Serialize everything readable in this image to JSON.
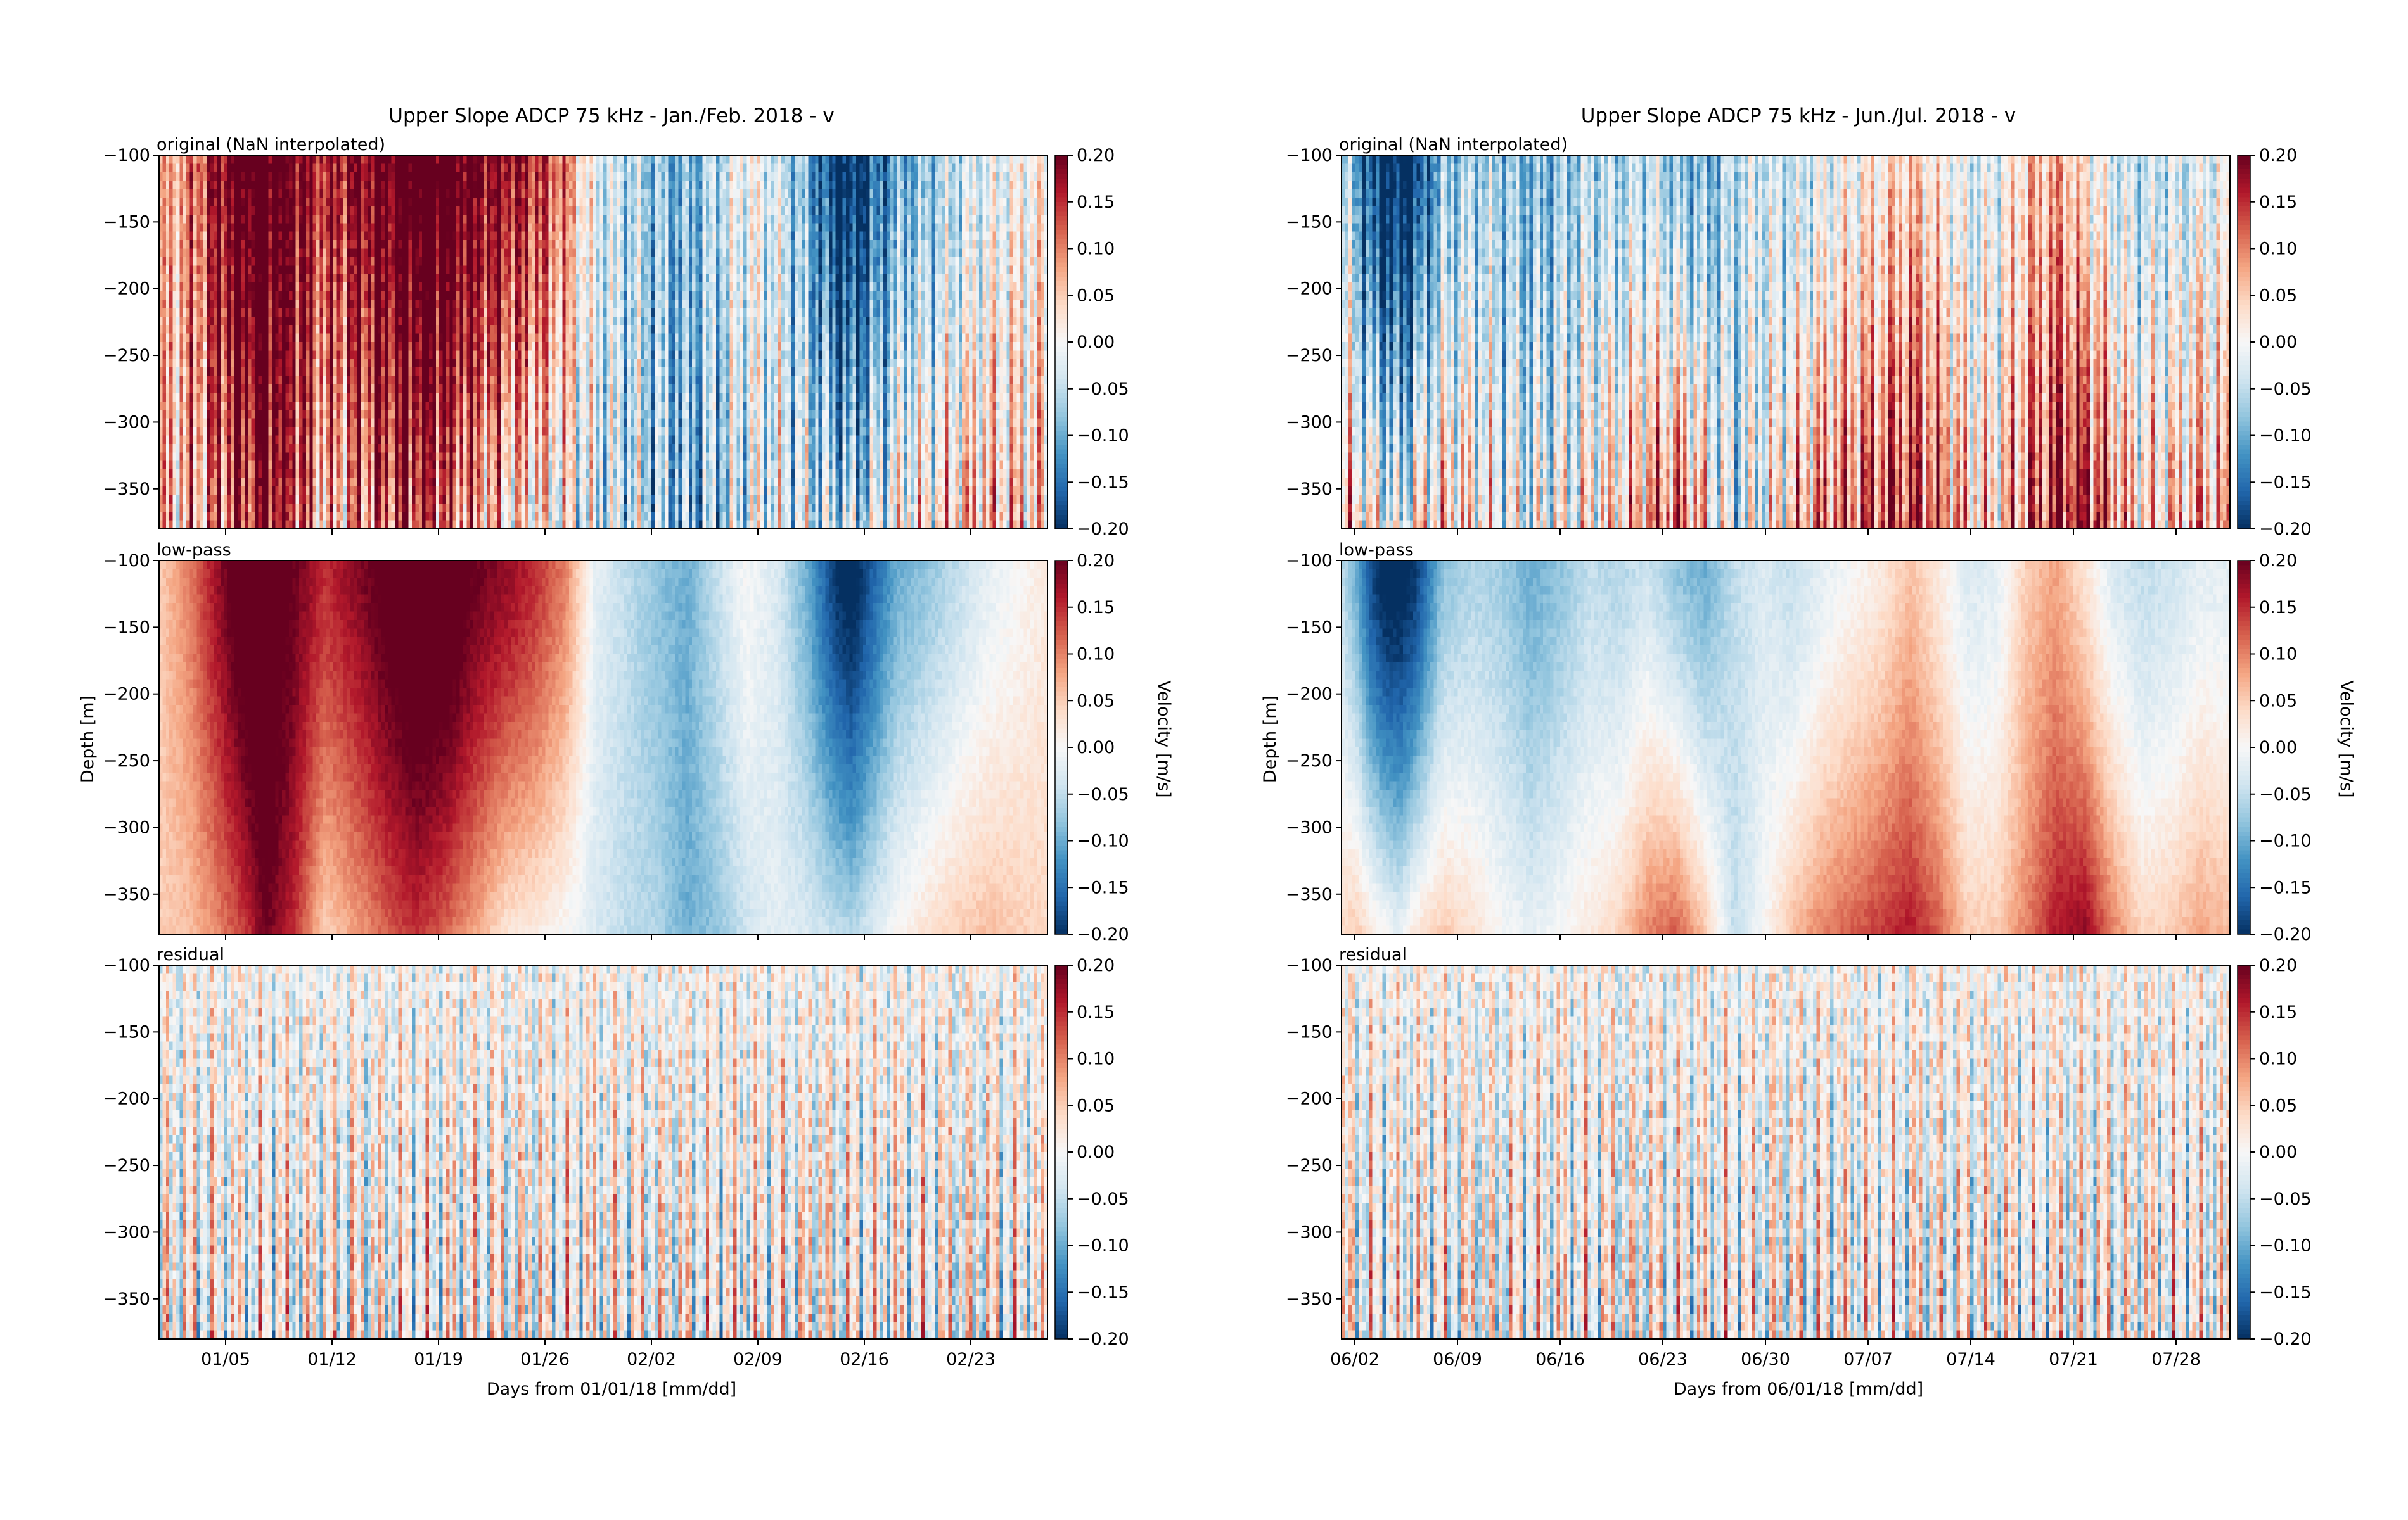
{
  "colorbar": {
    "min": -0.2,
    "max": 0.2,
    "ticks": [
      "0.20",
      "0.15",
      "0.10",
      "0.05",
      "0.00",
      "−0.05",
      "−0.10",
      "−0.15",
      "−0.20"
    ],
    "label": "Velocity [m/s]",
    "colormap": [
      "#053061",
      "#2166ac",
      "#4393c3",
      "#92c5de",
      "#d1e5f0",
      "#f7f7f7",
      "#fddbc7",
      "#f4a582",
      "#d6604d",
      "#b2182b",
      "#67001f"
    ]
  },
  "ylabel": "Depth [m]",
  "panel_labels": [
    "original (NaN interpolated)",
    "low-pass",
    "residual"
  ],
  "chart_data": [
    {
      "type": "heatmap",
      "title": "Upper Slope ADCP 75 kHz - Jan./Feb. 2018 - v",
      "xlabel": "Days from 01/01/18 [mm/dd]",
      "ylabel": "Depth [m]",
      "x_ticks": [
        "01/05",
        "01/12",
        "01/19",
        "01/26",
        "02/02",
        "02/09",
        "02/16",
        "02/23"
      ],
      "y_ticks": [
        "−100",
        "−150",
        "−200",
        "−250",
        "−300",
        "−350"
      ],
      "y_range": [
        -380,
        -100
      ],
      "clim": [
        -0.2,
        0.2
      ],
      "panels": [
        "original (NaN interpolated)",
        "low-pass",
        "residual"
      ],
      "lowpass_profile": {
        "day": [
          1,
          3,
          5,
          7,
          8,
          10,
          12,
          14,
          16,
          18,
          20,
          22,
          24,
          26,
          28,
          30,
          32,
          34,
          36,
          38,
          40,
          42,
          44,
          46,
          47,
          48,
          50,
          52,
          54,
          56,
          58,
          60
        ],
        "surface_v": [
          0.05,
          0.1,
          0.18,
          0.25,
          0.25,
          0.2,
          0.15,
          0.18,
          0.22,
          0.25,
          0.25,
          0.2,
          0.18,
          0.15,
          0.1,
          -0.02,
          -0.05,
          -0.08,
          -0.1,
          -0.05,
          0.0,
          -0.03,
          -0.1,
          -0.2,
          -0.22,
          -0.18,
          -0.1,
          -0.08,
          -0.05,
          -0.02,
          0.0,
          0.02
        ],
        "bottom_v": [
          0.05,
          0.06,
          0.1,
          0.15,
          0.2,
          0.15,
          0.05,
          0.08,
          0.12,
          0.15,
          0.12,
          0.08,
          0.03,
          0.02,
          0.0,
          -0.03,
          -0.05,
          -0.06,
          -0.1,
          -0.08,
          -0.04,
          -0.02,
          -0.03,
          -0.05,
          -0.06,
          -0.04,
          0.0,
          0.03,
          0.05,
          0.06,
          0.05,
          0.04
        ]
      }
    },
    {
      "type": "heatmap",
      "title": "Upper Slope ADCP 75 kHz - Jun./Jul. 2018 - v",
      "xlabel": "Days from 06/01/18 [mm/dd]",
      "ylabel": "Depth [m]",
      "x_ticks": [
        "06/02",
        "06/09",
        "06/16",
        "06/23",
        "06/30",
        "07/07",
        "07/14",
        "07/21",
        "07/28"
      ],
      "y_ticks": [
        "−100",
        "−150",
        "−200",
        "−250",
        "−300",
        "−350"
      ],
      "y_range": [
        -380,
        -100
      ],
      "clim": [
        -0.2,
        0.2
      ],
      "panels": [
        "original (NaN interpolated)",
        "low-pass",
        "residual"
      ],
      "lowpass_profile": {
        "day": [
          1,
          2,
          3,
          4,
          5,
          6,
          8,
          10,
          12,
          14,
          16,
          18,
          20,
          22,
          24,
          26,
          28,
          30,
          32,
          34,
          36,
          38,
          40,
          42,
          44,
          46,
          48,
          50,
          52,
          54,
          56,
          58,
          60,
          62
        ],
        "surface_v": [
          -0.05,
          -0.1,
          -0.18,
          -0.22,
          -0.22,
          -0.2,
          -0.08,
          -0.06,
          -0.07,
          -0.1,
          -0.08,
          -0.05,
          -0.06,
          -0.04,
          -0.08,
          -0.1,
          -0.05,
          -0.03,
          -0.05,
          -0.02,
          0.0,
          0.02,
          0.06,
          0.02,
          -0.03,
          -0.02,
          0.05,
          0.08,
          0.03,
          -0.03,
          -0.05,
          -0.04,
          -0.02,
          -0.02
        ],
        "bottom_v": [
          0.04,
          0.05,
          0.02,
          0.0,
          -0.02,
          0.02,
          0.05,
          0.03,
          0.0,
          -0.02,
          0.0,
          0.02,
          0.04,
          0.1,
          0.12,
          0.05,
          -0.05,
          0.0,
          0.06,
          0.1,
          0.12,
          0.14,
          0.16,
          0.12,
          0.05,
          0.05,
          0.1,
          0.16,
          0.18,
          0.1,
          0.04,
          0.05,
          0.08,
          0.06
        ]
      }
    }
  ]
}
